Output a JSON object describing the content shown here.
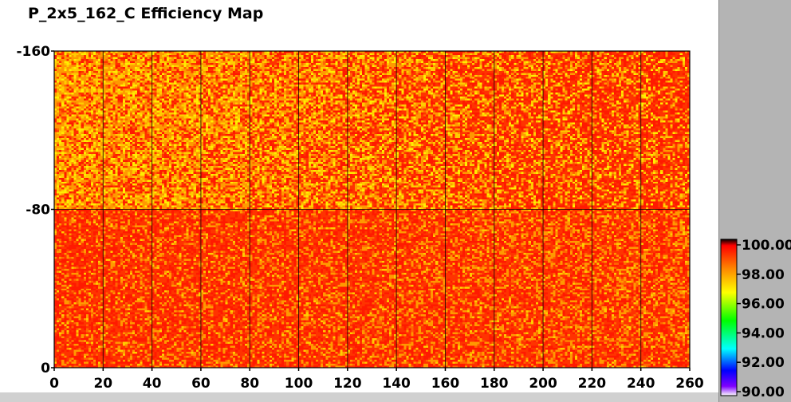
{
  "window": {
    "title": "P_2x5_162_C Efficiency Map"
  },
  "chart_data": {
    "type": "heatmap",
    "title": "P_2x5_162_C Efficiency Map",
    "xlabel": "",
    "ylabel": "",
    "xlim": [
      0,
      260
    ],
    "ylim": [
      0,
      160
    ],
    "x_ticks": [
      0,
      20,
      40,
      60,
      80,
      100,
      120,
      140,
      160,
      180,
      200,
      220,
      240,
      260
    ],
    "y_ticks": [
      0,
      80,
      160
    ],
    "x_tick_labels": [
      "0",
      "20",
      "40",
      "60",
      "80",
      "100",
      "120",
      "140",
      "160",
      "180",
      "200",
      "220",
      "240",
      "260"
    ],
    "y_tick_labels": [
      "0",
      "-80",
      "-160"
    ],
    "grid": true,
    "grid_columns": 13,
    "grid_rows": 2,
    "colorbar": {
      "min": 90.0,
      "max": 100.0,
      "tick_values": [
        100.0,
        98.0,
        96.0,
        94.0,
        92.0,
        90.0
      ],
      "tick_labels": [
        "100.00",
        "98.00",
        "96.00",
        "94.00",
        "92.00",
        "90.00"
      ],
      "colors": [
        "#000000",
        "#ff0000",
        "#ff8000",
        "#ffff00",
        "#00ff00",
        "#00ffff",
        "#0000ff",
        "#8000ff",
        "#ffffff"
      ]
    },
    "regions": [
      {
        "name": "upper half",
        "y_range": [
          80,
          160
        ],
        "approx_mean_efficiency": 98.9,
        "note": "more orange/yellow toward low x"
      },
      {
        "name": "lower half",
        "y_range": [
          0,
          80
        ],
        "approx_mean_efficiency": 99.6
      }
    ],
    "colors": {
      "high": "#ff1a00",
      "mid": "#ff9900",
      "low": "#ffee00"
    }
  }
}
